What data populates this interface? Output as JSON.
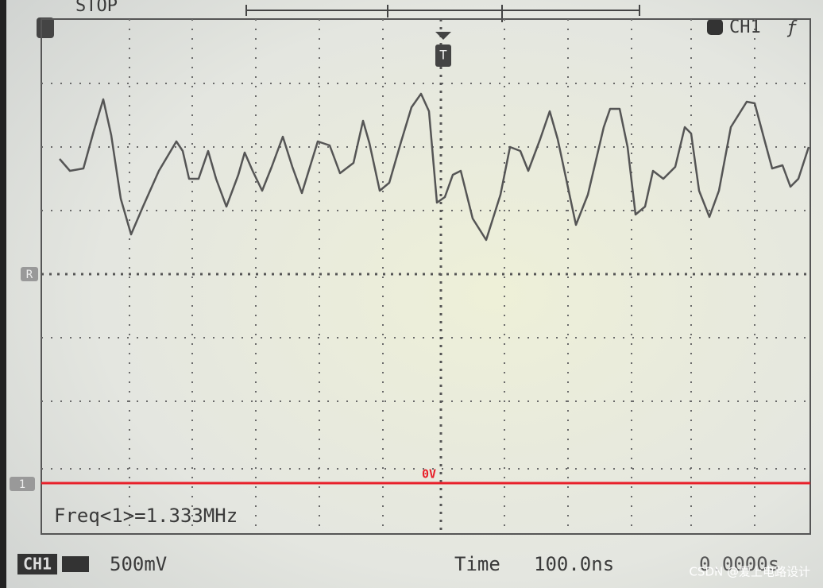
{
  "status": {
    "run_state": "STOP",
    "trigger_marker": "T",
    "channel": "CH1"
  },
  "screen": {
    "ref_marker": "R",
    "channel_marker": "1",
    "zero_label": "0V",
    "measurement": "Freq<1>=1.333MHz"
  },
  "footer": {
    "channel": "CH1",
    "volts_per_div": "500mV",
    "time_label": "Time",
    "time_per_div": "100.0ns",
    "trigger_offset": "0.0000s"
  },
  "watermark": "CSDN @爱上电路设计"
}
